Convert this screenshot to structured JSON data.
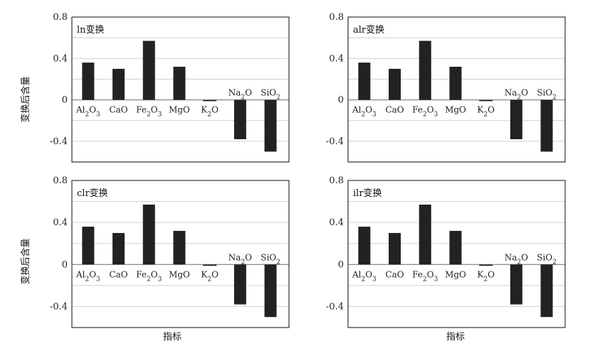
{
  "figure": {
    "ylabel": "变换后含量",
    "xlabel": "指标"
  },
  "chart_data": [
    {
      "type": "bar",
      "title": "ln变换",
      "categories": [
        "Al2O3",
        "CaO",
        "Fe2O3",
        "MgO",
        "K2O",
        "Na2O",
        "SiO2"
      ],
      "values": [
        0.36,
        0.3,
        0.57,
        0.32,
        0.0,
        -0.38,
        -0.5
      ],
      "ylim": [
        -0.6,
        0.8
      ],
      "yticks": [
        0.8,
        0.4,
        0,
        -0.4
      ],
      "grid": true
    },
    {
      "type": "bar",
      "title": "alr变换",
      "categories": [
        "Al2O3",
        "CaO",
        "Fe2O3",
        "MgO",
        "K2O",
        "Na2O",
        "SiO2"
      ],
      "values": [
        0.36,
        0.3,
        0.57,
        0.32,
        0.0,
        -0.38,
        -0.5
      ],
      "ylim": [
        -0.6,
        0.8
      ],
      "yticks": [
        0.8,
        0.4,
        0,
        -0.4
      ],
      "grid": true
    },
    {
      "type": "bar",
      "title": "clr变换",
      "categories": [
        "Al2O3",
        "CaO",
        "Fe2O3",
        "MgO",
        "K2O",
        "Na2O",
        "SiO2"
      ],
      "values": [
        0.36,
        0.3,
        0.57,
        0.32,
        0.0,
        -0.38,
        -0.5
      ],
      "ylim": [
        -0.6,
        0.8
      ],
      "yticks": [
        0.8,
        0.4,
        0,
        -0.4
      ],
      "grid": true
    },
    {
      "type": "bar",
      "title": "ilr变换",
      "categories": [
        "Al2O3",
        "CaO",
        "Fe2O3",
        "MgO",
        "K2O",
        "Na2O",
        "SiO2"
      ],
      "values": [
        0.36,
        0.3,
        0.57,
        0.32,
        0.0,
        -0.38,
        -0.5
      ],
      "ylim": [
        -0.6,
        0.8
      ],
      "yticks": [
        0.8,
        0.4,
        0,
        -0.4
      ],
      "grid": true
    }
  ]
}
